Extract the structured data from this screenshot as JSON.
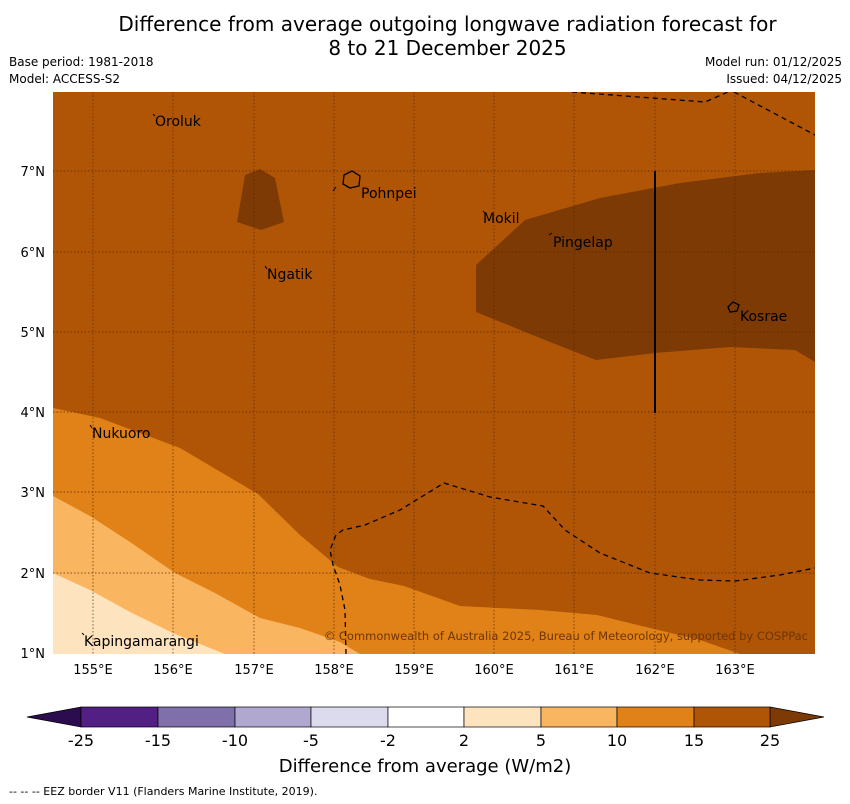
{
  "header": {
    "title_line1": "Difference from average outgoing longwave radiation forecast for",
    "title_line2": "8 to 21 December 2025",
    "base_period": "Base period: 1981-2018",
    "model": "Model: ACCESS-S2",
    "model_run": "Model run: 01/12/2025",
    "issued": "Issued: 04/12/2025"
  },
  "map": {
    "lon_ticks": [
      "155°E",
      "156°E",
      "157°E",
      "158°E",
      "159°E",
      "160°E",
      "161°E",
      "162°E",
      "163°E"
    ],
    "lat_ticks": [
      "7°N",
      "6°N",
      "5°N",
      "4°N",
      "3°N",
      "2°N",
      "1°N"
    ],
    "places": [
      {
        "name": "Oroluk"
      },
      {
        "name": "Pohnpei"
      },
      {
        "name": "Mokil"
      },
      {
        "name": "Pingelap"
      },
      {
        "name": "Ngatik"
      },
      {
        "name": "Kosrae"
      },
      {
        "name": "Nukuoro"
      },
      {
        "name": "Kapingamarangi"
      }
    ],
    "copyright": "© Commonwealth of Australia 2025, Bureau of Meteorology, supported by COSPPac"
  },
  "colors": {
    "ocean_15_25": "#b05506",
    "above_25": "#7d3a05",
    "band_10_15": "#e08218",
    "band_5_10": "#fab560",
    "band_2_5": "#fde3be"
  },
  "legend": {
    "title": "Difference from average (W/m2)",
    "tick_labels": [
      "-25",
      "-15",
      "-10",
      "-5",
      "-2",
      "2",
      "5",
      "10",
      "15",
      "25"
    ],
    "bins": [
      {
        "color": "#521f85"
      },
      {
        "color": "#7f6faa"
      },
      {
        "color": "#b1a8d0"
      },
      {
        "color": "#dcdbee"
      },
      {
        "color": "#ffffff"
      },
      {
        "color": "#fde3be"
      },
      {
        "color": "#fab560"
      },
      {
        "color": "#e08218"
      },
      {
        "color": "#b05506"
      }
    ],
    "under_color": "#2b0c4f",
    "over_color": "#7d3a05"
  },
  "footer": {
    "eez_note": "--  --  -- EEZ border V11 (Flanders Marine Institute, 2019)."
  }
}
